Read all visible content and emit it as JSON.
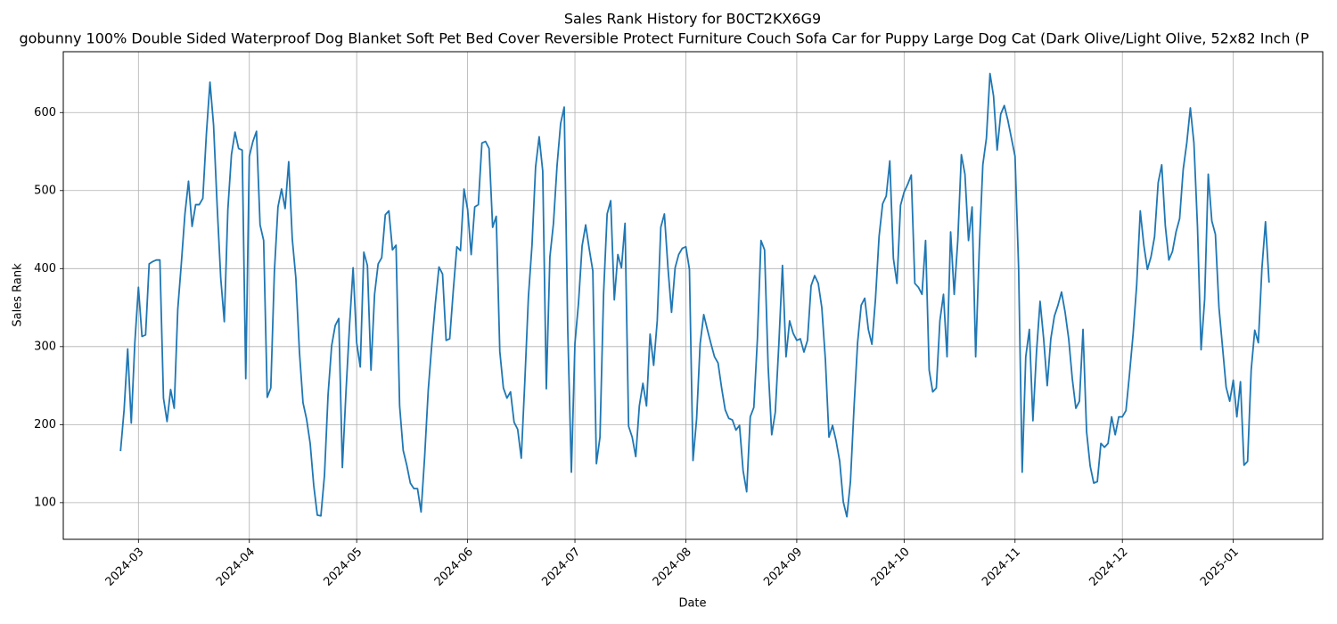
{
  "chart_data": {
    "type": "line",
    "title": "Sales Rank History for B0CT2KX6G9",
    "subtitle": "gobunny 100% Double Sided Waterproof Dog Blanket Soft Pet Bed Cover Reversible Protect Furniture Couch Sofa Car for Puppy Large Dog Cat (Dark Olive/Light Olive, 52x82 Inch (P",
    "x_label": "Date",
    "y_label": "Sales Rank",
    "grid": true,
    "xlim": [
      "2024-02-09",
      "2025-01-26"
    ],
    "xticks": [
      {
        "value": "2024-03-01",
        "label": "2024-03"
      },
      {
        "value": "2024-04-01",
        "label": "2024-04"
      },
      {
        "value": "2024-05-01",
        "label": "2024-05"
      },
      {
        "value": "2024-06-01",
        "label": "2024-06"
      },
      {
        "value": "2024-07-01",
        "label": "2024-07"
      },
      {
        "value": "2024-08-01",
        "label": "2024-08"
      },
      {
        "value": "2024-09-01",
        "label": "2024-09"
      },
      {
        "value": "2024-10-01",
        "label": "2024-10"
      },
      {
        "value": "2024-11-01",
        "label": "2024-11"
      },
      {
        "value": "2024-12-01",
        "label": "2024-12"
      },
      {
        "value": "2025-01-01",
        "label": "2025-01"
      }
    ],
    "ylim": [
      53,
      678
    ],
    "yticks": [
      100,
      200,
      300,
      400,
      500,
      600
    ],
    "x": [
      "2024-02-25",
      "2024-02-26",
      "2024-02-27",
      "2024-02-28",
      "2024-02-29",
      "2024-03-01",
      "2024-03-02",
      "2024-03-03",
      "2024-03-04",
      "2024-03-05",
      "2024-03-06",
      "2024-03-07",
      "2024-03-08",
      "2024-03-09",
      "2024-03-10",
      "2024-03-11",
      "2024-03-12",
      "2024-03-13",
      "2024-03-14",
      "2024-03-15",
      "2024-03-16",
      "2024-03-17",
      "2024-03-18",
      "2024-03-19",
      "2024-03-20",
      "2024-03-21",
      "2024-03-22",
      "2024-03-23",
      "2024-03-24",
      "2024-03-25",
      "2024-03-26",
      "2024-03-27",
      "2024-03-28",
      "2024-03-29",
      "2024-03-30",
      "2024-03-31",
      "2024-04-01",
      "2024-04-02",
      "2024-04-03",
      "2024-04-04",
      "2024-04-05",
      "2024-04-06",
      "2024-04-07",
      "2024-04-08",
      "2024-04-09",
      "2024-04-10",
      "2024-04-11",
      "2024-04-12",
      "2024-04-13",
      "2024-04-14",
      "2024-04-15",
      "2024-04-16",
      "2024-04-17",
      "2024-04-18",
      "2024-04-19",
      "2024-04-20",
      "2024-04-21",
      "2024-04-22",
      "2024-04-23",
      "2024-04-24",
      "2024-04-25",
      "2024-04-26",
      "2024-04-27",
      "2024-04-28",
      "2024-04-29",
      "2024-04-30",
      "2024-05-01",
      "2024-05-02",
      "2024-05-03",
      "2024-05-04",
      "2024-05-05",
      "2024-05-06",
      "2024-05-07",
      "2024-05-08",
      "2024-05-09",
      "2024-05-10",
      "2024-05-11",
      "2024-05-12",
      "2024-05-13",
      "2024-05-14",
      "2024-05-15",
      "2024-05-16",
      "2024-05-17",
      "2024-05-18",
      "2024-05-19",
      "2024-05-20",
      "2024-05-21",
      "2024-05-22",
      "2024-05-23",
      "2024-05-24",
      "2024-05-25",
      "2024-05-26",
      "2024-05-27",
      "2024-05-28",
      "2024-05-29",
      "2024-05-30",
      "2024-05-31",
      "2024-06-01",
      "2024-06-02",
      "2024-06-03",
      "2024-06-04",
      "2024-06-05",
      "2024-06-06",
      "2024-06-07",
      "2024-06-08",
      "2024-06-09",
      "2024-06-10",
      "2024-06-11",
      "2024-06-12",
      "2024-06-13",
      "2024-06-14",
      "2024-06-15",
      "2024-06-16",
      "2024-06-17",
      "2024-06-18",
      "2024-06-19",
      "2024-06-20",
      "2024-06-21",
      "2024-06-22",
      "2024-06-23",
      "2024-06-24",
      "2024-06-25",
      "2024-06-26",
      "2024-06-27",
      "2024-06-28",
      "2024-06-29",
      "2024-06-30",
      "2024-07-01",
      "2024-07-02",
      "2024-07-03",
      "2024-07-04",
      "2024-07-05",
      "2024-07-06",
      "2024-07-07",
      "2024-07-08",
      "2024-07-09",
      "2024-07-10",
      "2024-07-11",
      "2024-07-12",
      "2024-07-13",
      "2024-07-14",
      "2024-07-15",
      "2024-07-16",
      "2024-07-17",
      "2024-07-18",
      "2024-07-19",
      "2024-07-20",
      "2024-07-21",
      "2024-07-22",
      "2024-07-23",
      "2024-07-24",
      "2024-07-25",
      "2024-07-26",
      "2024-07-27",
      "2024-07-28",
      "2024-07-29",
      "2024-07-30",
      "2024-07-31",
      "2024-08-01",
      "2024-08-02",
      "2024-08-03",
      "2024-08-04",
      "2024-08-05",
      "2024-08-06",
      "2024-08-07",
      "2024-08-08",
      "2024-08-09",
      "2024-08-10",
      "2024-08-11",
      "2024-08-12",
      "2024-08-13",
      "2024-08-14",
      "2024-08-15",
      "2024-08-16",
      "2024-08-17",
      "2024-08-18",
      "2024-08-19",
      "2024-08-20",
      "2024-08-21",
      "2024-08-22",
      "2024-08-23",
      "2024-08-24",
      "2024-08-25",
      "2024-08-26",
      "2024-08-27",
      "2024-08-28",
      "2024-08-29",
      "2024-08-30",
      "2024-08-31",
      "2024-09-01",
      "2024-09-02",
      "2024-09-03",
      "2024-09-04",
      "2024-09-05",
      "2024-09-06",
      "2024-09-07",
      "2024-09-08",
      "2024-09-09",
      "2024-09-10",
      "2024-09-11",
      "2024-09-12",
      "2024-09-13",
      "2024-09-14",
      "2024-09-15",
      "2024-09-16",
      "2024-09-17",
      "2024-09-18",
      "2024-09-19",
      "2024-09-20",
      "2024-09-21",
      "2024-09-22",
      "2024-09-23",
      "2024-09-24",
      "2024-09-25",
      "2024-09-26",
      "2024-09-27",
      "2024-09-28",
      "2024-09-29",
      "2024-09-30",
      "2024-10-01",
      "2024-10-02",
      "2024-10-03",
      "2024-10-04",
      "2024-10-05",
      "2024-10-06",
      "2024-10-07",
      "2024-10-08",
      "2024-10-09",
      "2024-10-10",
      "2024-10-11",
      "2024-10-12",
      "2024-10-13",
      "2024-10-14",
      "2024-10-15",
      "2024-10-16",
      "2024-10-17",
      "2024-10-18",
      "2024-10-19",
      "2024-10-20",
      "2024-10-21",
      "2024-10-22",
      "2024-10-23",
      "2024-10-24",
      "2024-10-25",
      "2024-10-26",
      "2024-10-27",
      "2024-10-28",
      "2024-10-29",
      "2024-10-30",
      "2024-10-31",
      "2024-11-01",
      "2024-11-02",
      "2024-11-03",
      "2024-11-04",
      "2024-11-05",
      "2024-11-06",
      "2024-11-07",
      "2024-11-08",
      "2024-11-09",
      "2024-11-10",
      "2024-11-11",
      "2024-11-12",
      "2024-11-13",
      "2024-11-14",
      "2024-11-15",
      "2024-11-16",
      "2024-11-17",
      "2024-11-18",
      "2024-11-19",
      "2024-11-20",
      "2024-11-21",
      "2024-11-22",
      "2024-11-23",
      "2024-11-24",
      "2024-11-25",
      "2024-11-26",
      "2024-11-27",
      "2024-11-28",
      "2024-11-29",
      "2024-11-30",
      "2024-12-01",
      "2024-12-02",
      "2024-12-03",
      "2024-12-04",
      "2024-12-05",
      "2024-12-06",
      "2024-12-07",
      "2024-12-08",
      "2024-12-09",
      "2024-12-10",
      "2024-12-11",
      "2024-12-12",
      "2024-12-13",
      "2024-12-14",
      "2024-12-15",
      "2024-12-16",
      "2024-12-17",
      "2024-12-18",
      "2024-12-19",
      "2024-12-20",
      "2024-12-21",
      "2024-12-22",
      "2024-12-23",
      "2024-12-24",
      "2024-12-25",
      "2024-12-26",
      "2024-12-27",
      "2024-12-28",
      "2024-12-29",
      "2024-12-30",
      "2024-12-31",
      "2025-01-01",
      "2025-01-02",
      "2025-01-03",
      "2025-01-04",
      "2025-01-05",
      "2025-01-06",
      "2025-01-07",
      "2025-01-08",
      "2025-01-09",
      "2025-01-10",
      "2025-01-11"
    ],
    "series": [
      {
        "name": "Sales Rank",
        "color": "#1f77b4",
        "values": [
          166,
          219,
          297,
          202,
          305,
          376,
          313,
          315,
          406,
          409,
          411,
          411,
          234,
          204,
          245,
          221,
          348,
          407,
          470,
          512,
          454,
          482,
          482,
          490,
          573,
          639,
          584,
          481,
          388,
          332,
          476,
          546,
          575,
          554,
          552,
          259,
          544,
          563,
          576,
          456,
          436,
          235,
          247,
          396,
          479,
          502,
          477,
          537,
          438,
          388,
          293,
          228,
          207,
          176,
          122,
          84,
          83,
          135,
          238,
          301,
          327,
          336,
          145,
          241,
          327,
          401,
          305,
          274,
          421,
          404,
          270,
          367,
          406,
          414,
          469,
          474,
          424,
          430,
          224,
          167,
          148,
          125,
          118,
          118,
          88,
          159,
          244,
          303,
          356,
          402,
          393,
          308,
          310,
          372,
          428,
          423,
          502,
          476,
          418,
          479,
          482,
          561,
          563,
          554,
          453,
          467,
          294,
          247,
          234,
          242,
          203,
          194,
          157,
          256,
          364,
          430,
          530,
          569,
          525,
          246,
          415,
          458,
          532,
          586,
          607,
          321,
          139,
          304,
          356,
          429,
          456,
          425,
          397,
          150,
          184,
          367,
          470,
          487,
          360,
          418,
          401,
          458,
          198,
          184,
          159,
          224,
          253,
          224,
          316,
          276,
          333,
          453,
          470,
          401,
          344,
          401,
          418,
          426,
          428,
          399,
          154,
          207,
          304,
          341,
          322,
          304,
          287,
          279,
          247,
          219,
          208,
          206,
          193,
          199,
          141,
          114,
          210,
          222,
          310,
          436,
          424,
          274,
          187,
          216,
          304,
          404,
          287,
          333,
          317,
          308,
          310,
          293,
          308,
          378,
          391,
          381,
          350,
          283,
          184,
          199,
          179,
          153,
          101,
          82,
          127,
          222,
          305,
          353,
          362,
          322,
          303,
          361,
          441,
          483,
          493,
          538,
          413,
          381,
          481,
          498,
          508,
          520,
          381,
          376,
          367,
          436,
          270,
          242,
          247,
          333,
          367,
          287,
          447,
          367,
          436,
          546,
          521,
          436,
          479,
          287,
          424,
          533,
          567,
          650,
          621,
          552,
          598,
          609,
          590,
          567,
          544,
          401,
          139,
          287,
          322,
          205,
          293,
          358,
          310,
          250,
          310,
          339,
          353,
          370,
          344,
          310,
          259,
          221,
          230,
          322,
          191,
          147,
          125,
          127,
          176,
          171,
          176,
          210,
          187,
          210,
          210,
          218,
          265,
          316,
          379,
          474,
          430,
          399,
          415,
          441,
          510,
          533,
          455,
          411,
          422,
          447,
          464,
          527,
          561,
          606,
          561,
          453,
          296,
          361,
          521,
          461,
          444,
          350,
          299,
          248,
          230,
          257,
          210,
          255,
          148,
          153,
          270,
          321,
          305,
          400,
          460,
          382
        ]
      }
    ]
  }
}
